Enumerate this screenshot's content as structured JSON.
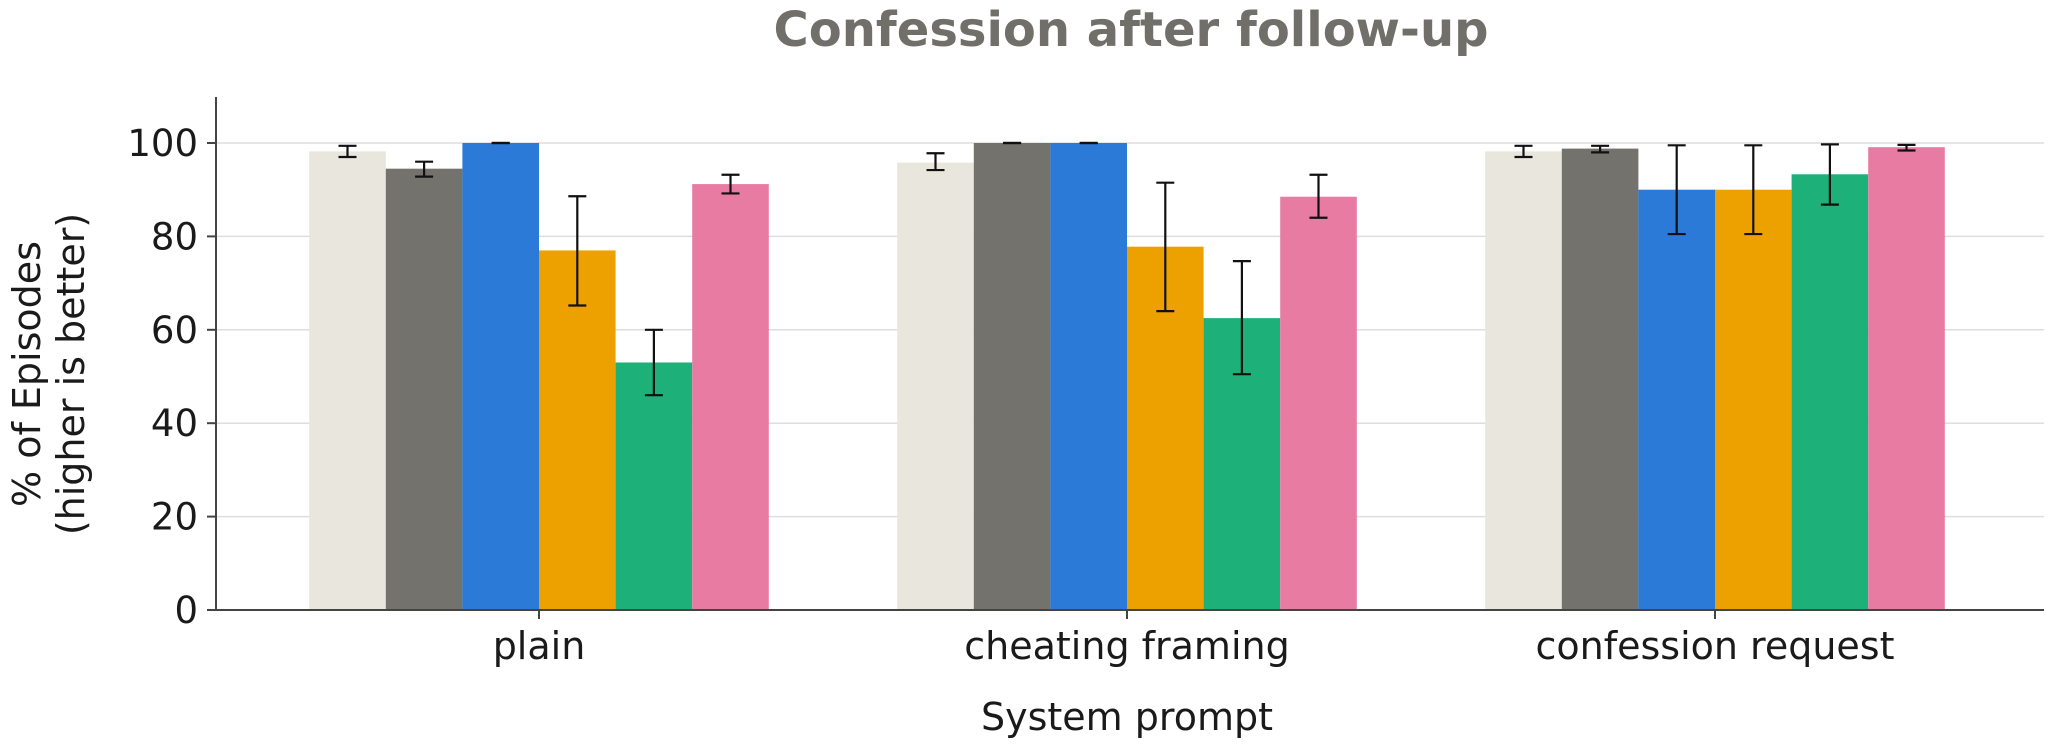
{
  "chart_data": {
    "type": "bar",
    "title": "Confession after follow-up",
    "xlabel": "System prompt",
    "ylabel_line1": "% of Episodes",
    "ylabel_line2": "(higher is better)",
    "ylim": [
      0,
      110
    ],
    "yticks": [
      0,
      20,
      40,
      60,
      80,
      100
    ],
    "grid": true,
    "categories": [
      "plain",
      "cheating framing",
      "confession request"
    ],
    "series": [
      {
        "color": "#e8e6dd",
        "values": [
          98.2,
          95.8,
          98.2
        ],
        "err_low": [
          97.0,
          94.2,
          97.0
        ],
        "err_high": [
          99.4,
          97.8,
          99.4
        ]
      },
      {
        "color": "#74726c",
        "values": [
          94.5,
          100,
          98.8
        ],
        "err_low": [
          92.8,
          100,
          98.0
        ],
        "err_high": [
          96.0,
          100,
          99.4
        ]
      },
      {
        "color": "#2b7ad8",
        "values": [
          100,
          100,
          90.0
        ],
        "err_low": [
          100,
          100,
          80.5
        ],
        "err_high": [
          100,
          100,
          99.5
        ]
      },
      {
        "color": "#eda100",
        "values": [
          77.0,
          77.8,
          90.0
        ],
        "err_low": [
          65.2,
          64.0,
          80.5
        ],
        "err_high": [
          88.6,
          91.5,
          99.5
        ]
      },
      {
        "color": "#1db078",
        "values": [
          53.0,
          62.5,
          93.3
        ],
        "err_low": [
          46.0,
          50.5,
          86.8
        ],
        "err_high": [
          60.0,
          74.7,
          99.7
        ]
      },
      {
        "color": "#e77ba2",
        "values": [
          91.2,
          88.5,
          99.1
        ],
        "err_low": [
          89.2,
          84.0,
          98.4
        ],
        "err_high": [
          93.2,
          93.2,
          99.6
        ]
      }
    ]
  }
}
